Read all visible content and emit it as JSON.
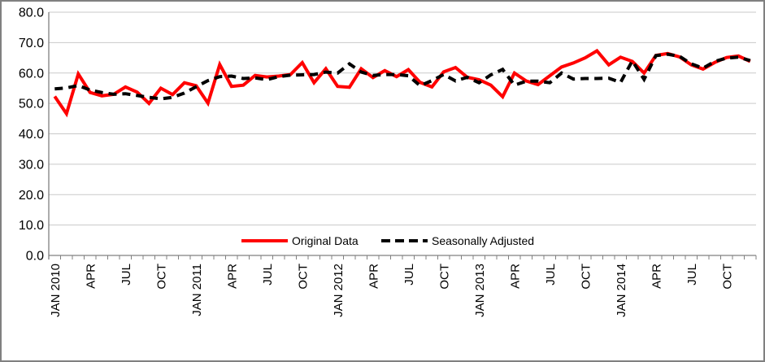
{
  "chart_data": {
    "type": "line",
    "title": "",
    "xlabel": "",
    "ylabel": "",
    "ylim": [
      0,
      80
    ],
    "y_tick_step": 10,
    "y_ticks": [
      "0.0",
      "10.0",
      "20.0",
      "30.0",
      "40.0",
      "50.0",
      "60.0",
      "70.0",
      "80.0"
    ],
    "grid": "horizontal",
    "legend_position": "inside-bottom-center",
    "months": [
      "JAN 2010",
      "FEB",
      "MAR",
      "APR",
      "MAY",
      "JUN",
      "JUL",
      "AUG",
      "SEP",
      "OCT",
      "NOV",
      "DEC",
      "JAN 2011",
      "FEB",
      "MAR",
      "APR",
      "MAY",
      "JUN",
      "JUL",
      "AUG",
      "SEP",
      "OCT",
      "NOV",
      "DEC",
      "JAN 2012",
      "FEB",
      "MAR",
      "APR",
      "MAY",
      "JUN",
      "JUL",
      "AUG",
      "SEP",
      "OCT",
      "NOV",
      "DEC",
      "JAN 2013",
      "FEB",
      "MAR",
      "APR",
      "MAY",
      "JUN",
      "JUL",
      "AUG",
      "SEP",
      "OCT",
      "NOV",
      "DEC",
      "JAN 2014",
      "FEB",
      "MAR",
      "APR",
      "MAY",
      "JUN",
      "JUL",
      "AUG",
      "SEP",
      "OCT",
      "NOV",
      "DEC"
    ],
    "visible_x_labels": [
      {
        "index": 0,
        "label": "JAN 2010"
      },
      {
        "index": 3,
        "label": "APR"
      },
      {
        "index": 6,
        "label": "JUL"
      },
      {
        "index": 9,
        "label": "OCT"
      },
      {
        "index": 12,
        "label": "JAN 2011"
      },
      {
        "index": 15,
        "label": "APR"
      },
      {
        "index": 18,
        "label": "JUL"
      },
      {
        "index": 21,
        "label": "OCT"
      },
      {
        "index": 24,
        "label": "JAN 2012"
      },
      {
        "index": 27,
        "label": "APR"
      },
      {
        "index": 30,
        "label": "JUL"
      },
      {
        "index": 33,
        "label": "OCT"
      },
      {
        "index": 36,
        "label": "JAN 2013"
      },
      {
        "index": 39,
        "label": "APR"
      },
      {
        "index": 42,
        "label": "JUL"
      },
      {
        "index": 45,
        "label": "OCT"
      },
      {
        "index": 48,
        "label": "JAN 2014"
      },
      {
        "index": 51,
        "label": "APR"
      },
      {
        "index": 54,
        "label": "JUL"
      },
      {
        "index": 57,
        "label": "OCT"
      }
    ],
    "series": [
      {
        "name": "Original Data",
        "color": "#FF0000",
        "style": "solid",
        "values": [
          52.3,
          46.6,
          59.7,
          53.6,
          52.5,
          53.0,
          55.4,
          53.7,
          50.0,
          55.0,
          52.9,
          56.8,
          55.8,
          50.1,
          62.8,
          55.6,
          56.0,
          59.2,
          58.7,
          59.0,
          59.5,
          63.4,
          56.8,
          61.4,
          55.6,
          55.3,
          61.4,
          58.5,
          60.8,
          58.8,
          61.1,
          56.9,
          55.4,
          60.4,
          61.8,
          58.6,
          57.8,
          56.0,
          52.2,
          60.0,
          57.4,
          56.2,
          59.1,
          62.0,
          63.3,
          65.0,
          67.3,
          62.7,
          65.2,
          63.8,
          60.0,
          65.8,
          66.4,
          65.3,
          62.7,
          61.3,
          63.5,
          65.1,
          65.6,
          63.8
        ]
      },
      {
        "name": "Seasonally Adjusted",
        "color": "#000000",
        "style": "dashed",
        "values": [
          54.8,
          55.1,
          55.9,
          54.4,
          53.6,
          53.0,
          53.2,
          52.6,
          52.0,
          51.5,
          52.0,
          53.4,
          55.5,
          57.5,
          58.8,
          59.0,
          58.2,
          58.4,
          57.8,
          58.8,
          59.3,
          59.4,
          59.5,
          60.3,
          60.0,
          63.0,
          60.3,
          59.2,
          59.5,
          59.5,
          59.1,
          55.8,
          57.5,
          59.5,
          57.4,
          58.6,
          56.8,
          59.4,
          61.2,
          56.0,
          57.3,
          57.3,
          56.8,
          60.0,
          58.0,
          58.2,
          58.2,
          58.3,
          56.9,
          64.0,
          57.9,
          65.7,
          66.2,
          65.5,
          63.0,
          61.6,
          63.8,
          64.9,
          65.2,
          64.1
        ]
      }
    ]
  },
  "colors": {
    "background": "#FFFFFF",
    "frame_border": "#808080",
    "axis": "#808080",
    "gridline": "#C9C9C9",
    "text": "#000000",
    "series_original": "#FF0000",
    "series_adjusted": "#000000"
  }
}
